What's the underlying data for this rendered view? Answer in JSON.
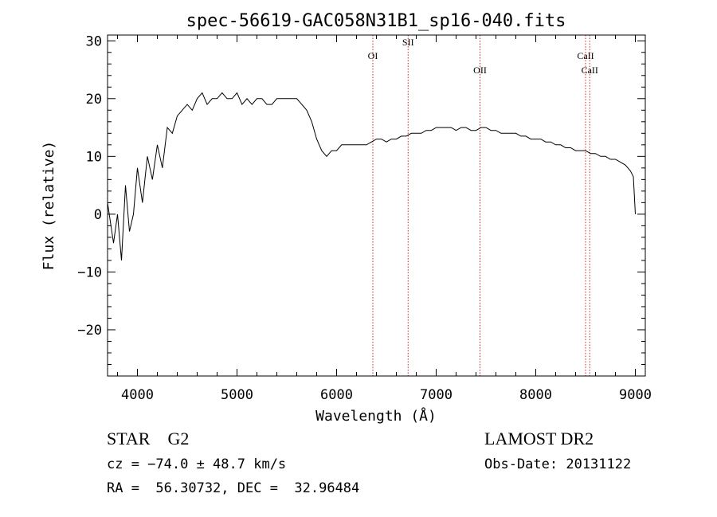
{
  "chart_data": {
    "type": "line",
    "title": "spec-56619-GAC058N31B1_sp16-040.fits",
    "xlabel": "Wavelength (Å)",
    "ylabel": "Flux (relative)",
    "xlim": [
      3700,
      9100
    ],
    "ylim": [
      -28,
      31
    ],
    "xticks": [
      4000,
      5000,
      6000,
      7000,
      8000,
      9000
    ],
    "xtick_labels": [
      "4000",
      "5000",
      "6000",
      "7000",
      "8000",
      "9000"
    ],
    "yticks": [
      -20,
      -10,
      0,
      10,
      20,
      30
    ],
    "ytick_labels": [
      "−20",
      "−10",
      "0",
      "10",
      "20",
      "30"
    ],
    "grid": false,
    "line_color": "#000000",
    "marker_color": "#cc2222",
    "series": [
      {
        "values_x": [
          3700,
          3760,
          3800,
          3840,
          3880,
          3920,
          3960,
          4000,
          4050,
          4100,
          4150,
          4200,
          4250,
          4300,
          4350,
          4400,
          4450,
          4500,
          4550,
          4600,
          4650,
          4700,
          4750,
          4800,
          4850,
          4900,
          4950,
          5000,
          5050,
          5100,
          5150,
          5200,
          5250,
          5300,
          5350,
          5400,
          5450,
          5500,
          5550,
          5600,
          5650,
          5700,
          5750,
          5800,
          5850,
          5900,
          5950,
          6000,
          6050,
          6100,
          6150,
          6200,
          6250,
          6300,
          6350,
          6400,
          6450,
          6500,
          6550,
          6600,
          6650,
          6700,
          6750,
          6800,
          6850,
          6900,
          6950,
          7000,
          7050,
          7100,
          7150,
          7200,
          7250,
          7300,
          7350,
          7400,
          7450,
          7500,
          7550,
          7600,
          7650,
          7700,
          7750,
          7800,
          7850,
          7900,
          7950,
          8000,
          8050,
          8100,
          8150,
          8200,
          8250,
          8300,
          8350,
          8400,
          8450,
          8500,
          8550,
          8600,
          8650,
          8700,
          8750,
          8800,
          8850,
          8900,
          8950,
          8980,
          9000
        ],
        "values_y": [
          2,
          -5,
          0,
          -8,
          5,
          -3,
          0,
          8,
          2,
          10,
          6,
          12,
          8,
          15,
          14,
          17,
          18,
          19,
          18,
          20,
          21,
          19,
          20,
          20,
          21,
          20,
          20,
          21,
          19,
          20,
          19,
          20,
          20,
          19,
          19,
          20,
          20,
          20,
          20,
          20,
          19,
          18,
          16,
          13,
          11,
          10,
          11,
          11,
          12,
          12,
          12,
          12,
          12,
          12,
          12.5,
          13,
          13,
          12.5,
          13,
          13,
          13.5,
          13.5,
          14,
          14,
          14,
          14.5,
          14.5,
          15,
          15,
          15,
          15,
          14.5,
          15,
          15,
          14.5,
          14.5,
          15,
          15,
          14.5,
          14.5,
          14,
          14,
          14,
          14,
          13.5,
          13.5,
          13,
          13,
          13,
          12.5,
          12.5,
          12,
          12,
          11.5,
          11.5,
          11,
          11,
          11,
          10.5,
          10.5,
          10,
          10,
          9.5,
          9.5,
          9,
          8.5,
          7.5,
          6.5,
          0
        ]
      }
    ],
    "lines": [
      {
        "label": "OI",
        "x": 6364
      },
      {
        "label": "SII",
        "x": 6718
      },
      {
        "label": "OII",
        "x": 7440
      },
      {
        "label": "CaII",
        "x": 8500
      },
      {
        "label": "CaII",
        "x": 8542
      }
    ]
  },
  "info": {
    "object_class": "STAR",
    "subclass": "G2",
    "survey": "LAMOST DR2",
    "cz": "cz = −74.0 ± 48.7 km/s",
    "obs_date": "Obs-Date: 20131122",
    "radec": "RA =  56.30732, DEC =  32.96484"
  }
}
